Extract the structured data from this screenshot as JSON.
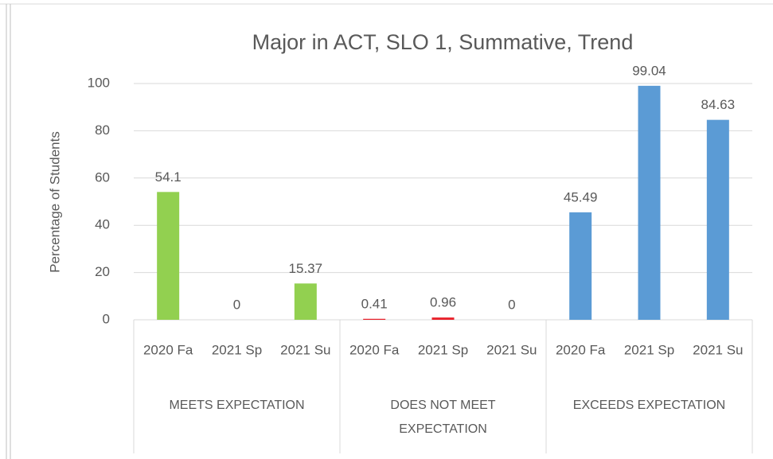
{
  "chart_data": {
    "type": "bar",
    "title": "Major in ACT, SLO 1, Summative, Trend",
    "ylabel": "Percentage of Students",
    "categories": [
      "2020 Fa",
      "2021 Sp",
      "2021 Su"
    ],
    "groups": [
      {
        "name": "MEETS EXPECTATION",
        "color": "#92d050",
        "values": [
          54.1,
          0,
          15.37
        ]
      },
      {
        "name": "DOES NOT MEET EXPECTATION",
        "color": "#e8202a",
        "values": [
          0.41,
          0.96,
          0
        ]
      },
      {
        "name": "EXCEEDS EXPECTATION",
        "color": "#5b9bd5",
        "values": [
          45.49,
          99.04,
          84.63
        ]
      }
    ],
    "ylim": [
      0,
      100
    ],
    "yticks": [
      0,
      20,
      40,
      60,
      80,
      100
    ],
    "grid": true
  }
}
